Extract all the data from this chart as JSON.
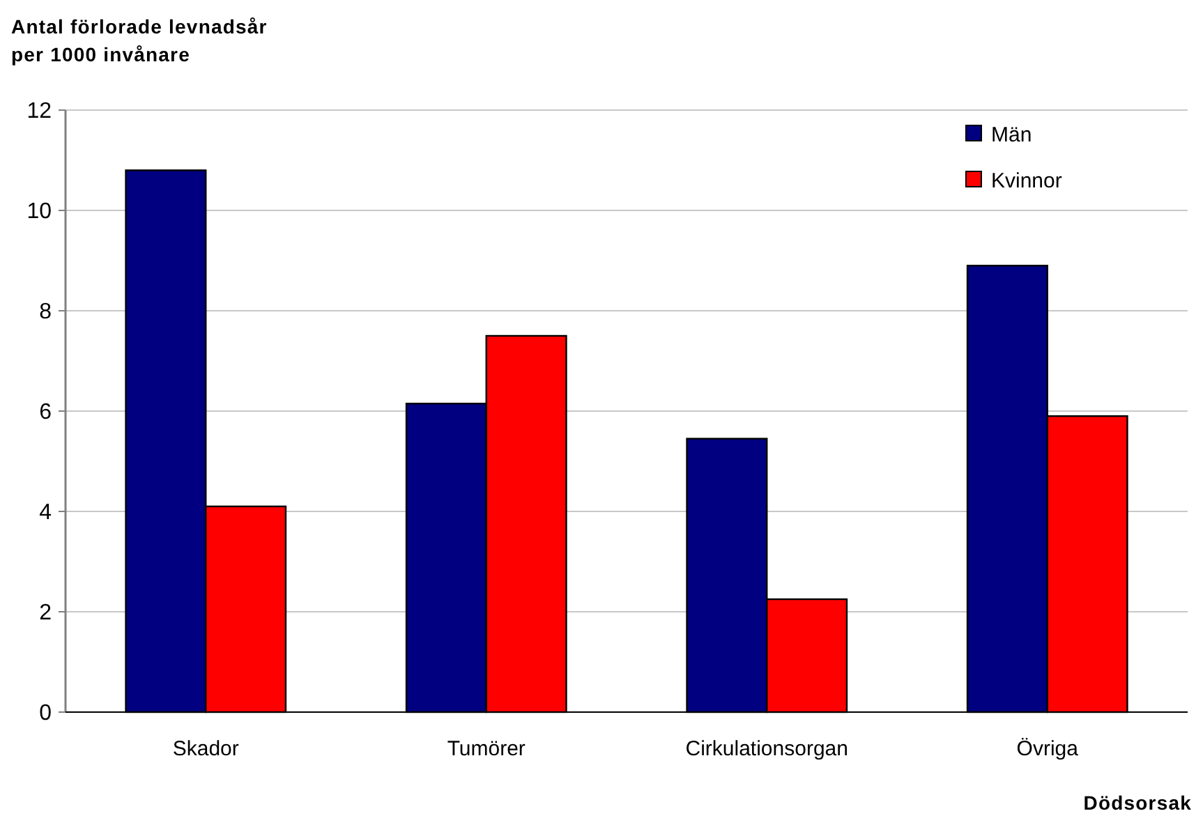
{
  "chart_data": {
    "type": "bar",
    "ylabel": "Antal förlorade levnadsår\nper 1000 invånare",
    "xlabel": "Dödsorsak",
    "categories": [
      "Skador",
      "Tumörer",
      "Cirkulationsorgan",
      "Övriga"
    ],
    "series": [
      {
        "name": "Män",
        "color": "#000080",
        "values": [
          10.8,
          6.15,
          5.45,
          8.9
        ]
      },
      {
        "name": "Kvinnor",
        "color": "#ff0000",
        "values": [
          4.1,
          7.5,
          2.25,
          5.9
        ]
      }
    ],
    "ylim": [
      0,
      12
    ],
    "yticks": [
      0,
      2,
      4,
      6,
      8,
      10,
      12
    ],
    "grid": "y",
    "legend": "top right"
  }
}
